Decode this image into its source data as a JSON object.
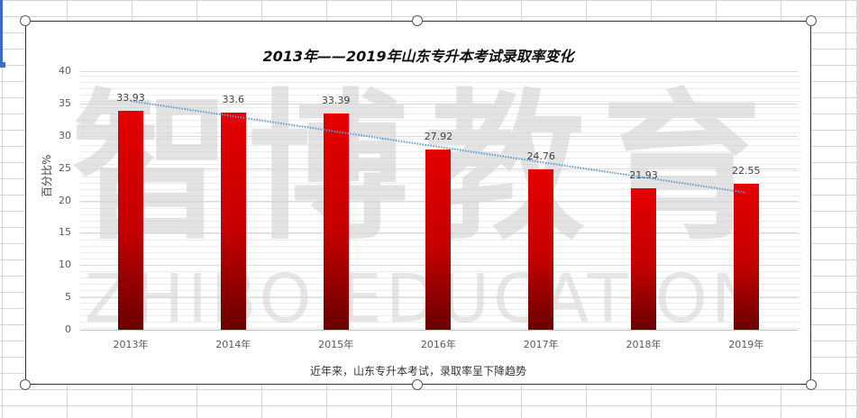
{
  "chart_data": {
    "type": "bar",
    "title": "2013年——2019年山东专升本考试录取率变化",
    "xlabel": "",
    "ylabel": "百分比%",
    "caption": "近年来，山东专升本考试，录取率呈下降趋势",
    "categories": [
      "2013年",
      "2014年",
      "2015年",
      "2016年",
      "2017年",
      "2018年",
      "2019年"
    ],
    "values": [
      33.93,
      33.6,
      33.39,
      27.92,
      24.76,
      21.93,
      22.55
    ],
    "value_labels": [
      "33.93",
      "33.6",
      "33.39",
      "27.92",
      "24.76",
      "21.93",
      "22.55"
    ],
    "ylim": [
      0,
      40
    ],
    "yticks": [
      "40",
      "35",
      "30",
      "25",
      "20",
      "15",
      "10",
      "5",
      "0"
    ],
    "grid": true,
    "legend": "none",
    "trendline": {
      "type": "linear",
      "style": "dotted",
      "color": "#5b9bd5"
    },
    "bar_color_top": "#e50000",
    "bar_color_bottom": "#6a0000"
  },
  "watermark": {
    "chinese": "智博教育",
    "english": "ZHIBO EDUCATION"
  }
}
